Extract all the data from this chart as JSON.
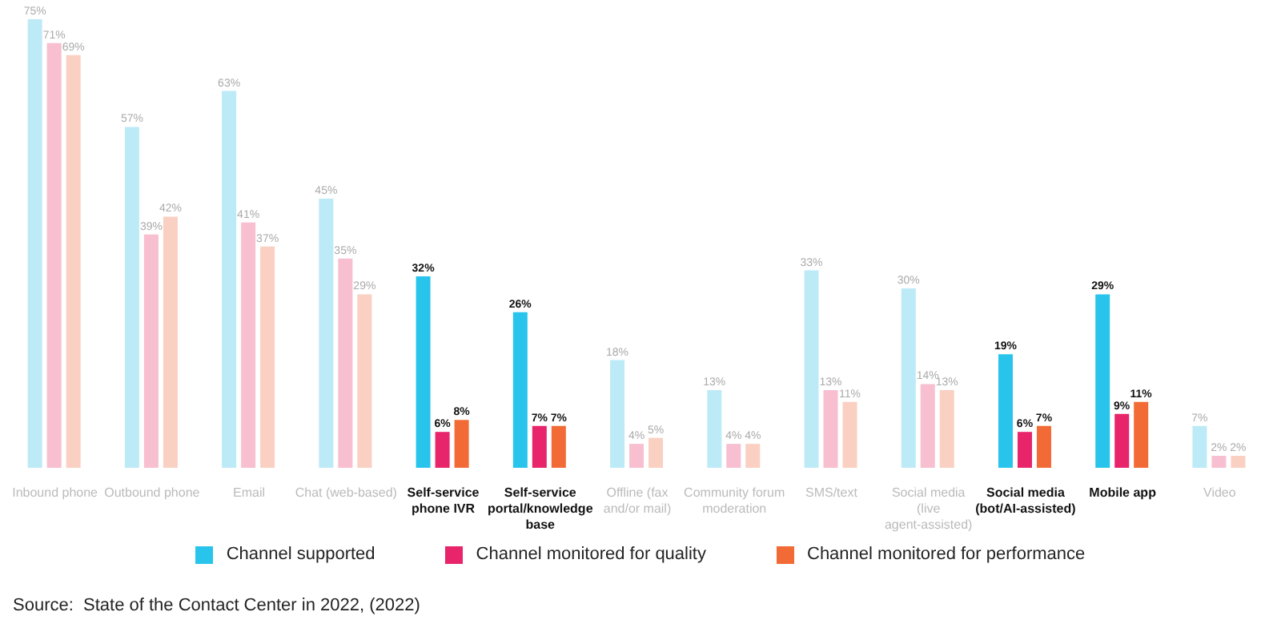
{
  "chart_data": {
    "type": "bar",
    "categories": [
      "Inbound phone",
      "Outbound phone",
      "Email",
      "Chat (web-based)",
      "Self-service phone IVR",
      "Self-service portal/knowledge base",
      "Offline (fax and/or mail)",
      "Community forum moderation",
      "SMS/text",
      "Social media (live agent-assisted)",
      "Social media (bot/AI-assisted)",
      "Mobile app",
      "Video"
    ],
    "series": [
      {
        "name": "Channel supported",
        "color": "#29c4ec",
        "colors": [
          "#bdeaf7",
          "#bdeaf7",
          "#bdeaf7",
          "#bdeaf7",
          "#29c4ec",
          "#29c4ec",
          "#bdeaf7",
          "#bdeaf7",
          "#bdeaf7",
          "#bdeaf7",
          "#29c4ec",
          "#29c4ec",
          "#bdeaf7"
        ],
        "values": [
          75,
          57,
          63,
          45,
          32,
          26,
          18,
          13,
          33,
          30,
          19,
          29,
          7
        ],
        "value_labels": [
          "75%",
          "57%",
          "63%",
          "45%",
          "32%",
          "26%",
          "18%",
          "13%",
          "33%",
          "30%",
          "19%",
          "29%",
          "7%"
        ]
      },
      {
        "name": "Channel monitored for quality",
        "color": "#e8246a",
        "colors": [
          "#f7bfd0",
          "#f7bfd0",
          "#f7bfd0",
          "#f7bfd0",
          "#e8246a",
          "#e8246a",
          "#f7bfd0",
          "#f7bfd0",
          "#f7bfd0",
          "#f7bfd0",
          "#e8246a",
          "#e8246a",
          "#f7bfd0"
        ],
        "values": [
          71,
          39,
          41,
          35,
          6,
          7,
          4,
          4,
          13,
          14,
          6,
          9,
          2
        ],
        "value_labels": [
          "71%",
          "39%",
          "41%",
          "35%",
          "6%",
          "7%",
          "4%",
          "4%",
          "13%",
          "14%",
          "6%",
          "9%",
          "2%"
        ]
      },
      {
        "name": "Channel monitored for performance",
        "color": "#f26a35",
        "colors": [
          "#f9d0c2",
          "#f9d0c2",
          "#f9d0c2",
          "#f9d0c2",
          "#f26a35",
          "#f26a35",
          "#f9d0c2",
          "#f9d0c2",
          "#f9d0c2",
          "#f9d0c2",
          "#f26a35",
          "#f26a35",
          "#f9d0c2"
        ],
        "values": [
          69,
          42,
          37,
          29,
          8,
          7,
          5,
          4,
          11,
          13,
          7,
          11,
          2
        ],
        "value_labels": [
          "69%",
          "42%",
          "37%",
          "29%",
          "8%",
          "7%",
          "5%",
          "4%",
          "11%",
          "13%",
          "7%",
          "11%",
          "2%"
        ]
      }
    ],
    "legend": "bottom",
    "annotations": [
      "Source:  State of the Contact Center in 2022, (2022)"
    ]
  }
}
